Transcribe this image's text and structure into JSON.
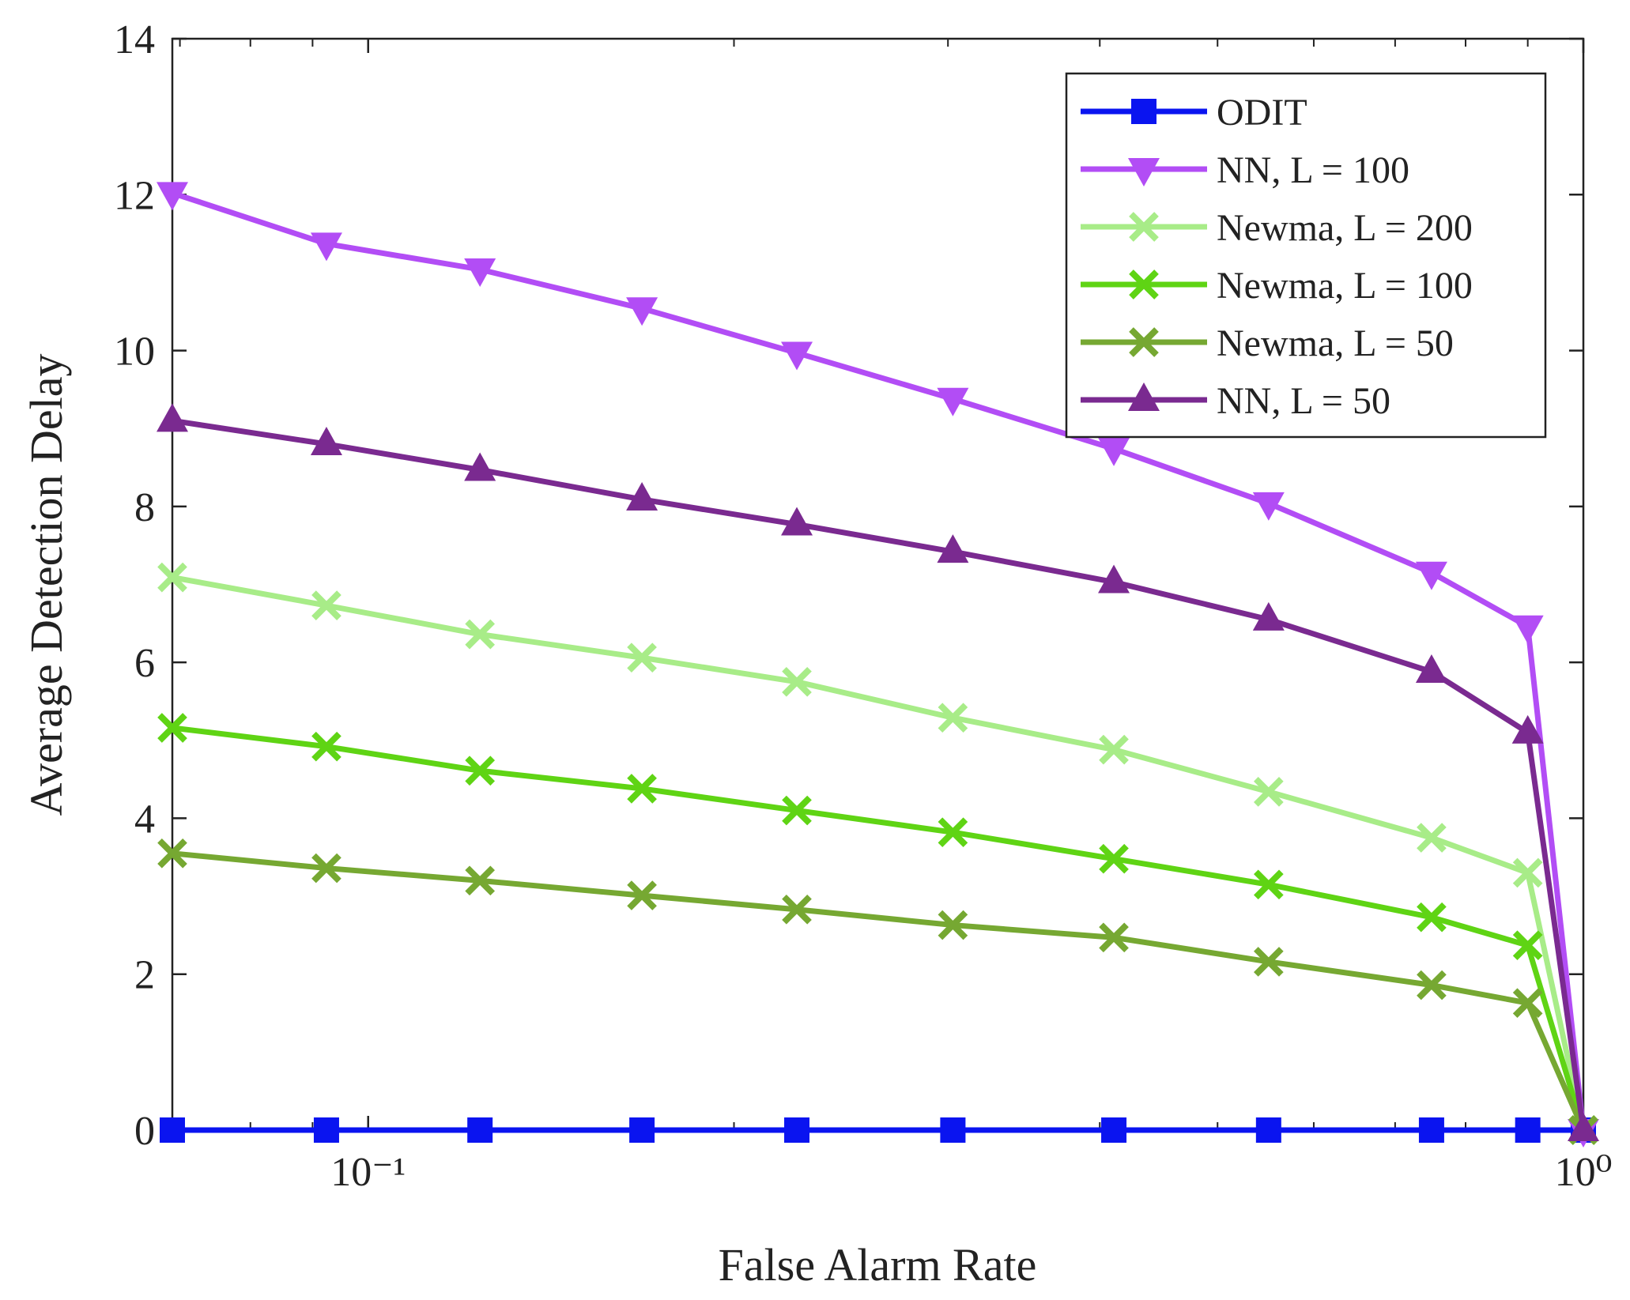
{
  "chart_data": {
    "type": "line",
    "xlabel": "False Alarm Rate",
    "ylabel": "Average Detection Delay",
    "xscale": "log",
    "xlim": [
      0.069,
      1
    ],
    "ylim": [
      0,
      14
    ],
    "xticks": [
      {
        "value": 0.1,
        "label": "10⁻¹"
      },
      {
        "value": 1,
        "label": "10⁰"
      }
    ],
    "xminorticks": [
      0.07,
      0.08,
      0.09,
      0.2,
      0.3,
      0.4,
      0.5,
      0.6,
      0.7,
      0.8,
      0.9
    ],
    "yticks": [
      0,
      2,
      4,
      6,
      8,
      10,
      12,
      14
    ],
    "legend": "upper right",
    "x": [
      0.069,
      0.0924,
      0.1236,
      0.168,
      0.2253,
      0.3028,
      0.4108,
      0.5508,
      0.75,
      0.9,
      1.0
    ],
    "series": [
      {
        "name": "ODIT",
        "color": "#0a14f0",
        "marker": "square",
        "values": [
          0,
          0,
          0,
          0,
          0,
          0,
          0,
          0,
          0,
          0,
          0
        ]
      },
      {
        "name": "NN, L = 100",
        "color": "#b24df5",
        "marker": "triangle-down",
        "values": [
          12.02,
          11.37,
          11.04,
          10.54,
          9.97,
          9.38,
          8.74,
          8.04,
          7.15,
          6.46,
          0
        ]
      },
      {
        "name": "Newma, L = 200",
        "color": "#a8ec88",
        "marker": "x",
        "values": [
          7.09,
          6.73,
          6.36,
          6.06,
          5.75,
          5.29,
          4.88,
          4.34,
          3.75,
          3.3,
          0
        ]
      },
      {
        "name": "Newma, L = 100",
        "color": "#5fd414",
        "marker": "x",
        "values": [
          5.16,
          4.92,
          4.61,
          4.38,
          4.1,
          3.82,
          3.48,
          3.15,
          2.73,
          2.37,
          0
        ]
      },
      {
        "name": "Newma, L = 50",
        "color": "#76a832",
        "marker": "x",
        "values": [
          3.55,
          3.36,
          3.2,
          3.01,
          2.83,
          2.63,
          2.47,
          2.16,
          1.86,
          1.63,
          0
        ]
      },
      {
        "name": "NN, L = 50",
        "color": "#7a2a90",
        "marker": "triangle-up",
        "values": [
          9.1,
          8.8,
          8.47,
          8.09,
          7.77,
          7.42,
          7.03,
          6.55,
          5.88,
          5.1,
          0
        ]
      }
    ]
  }
}
